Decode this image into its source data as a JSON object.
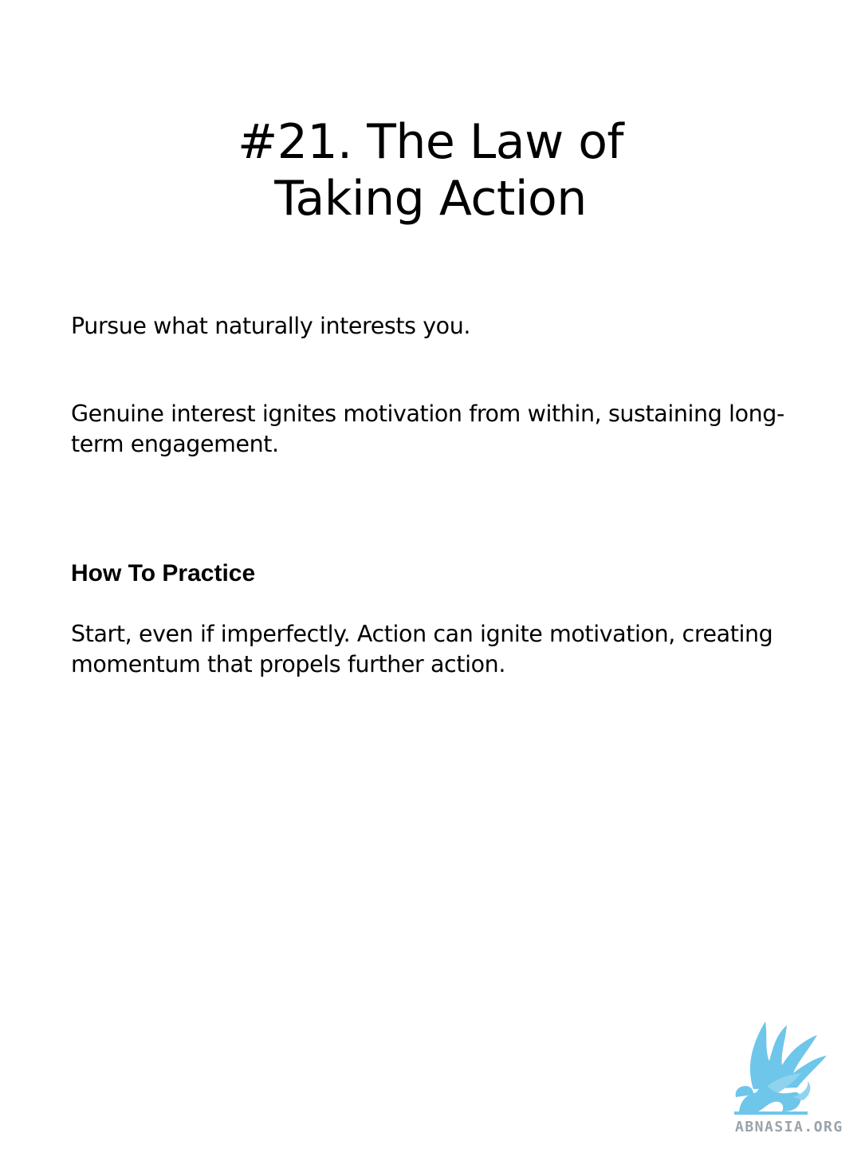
{
  "title": {
    "line1": "#21. The Law of",
    "line2": "Taking Action"
  },
  "paragraphs": {
    "intro": "Pursue what naturally interests you.",
    "explanation": "Genuine interest ignites motivation from within, sustaining long-term engagement."
  },
  "practice": {
    "heading": "How To Practice",
    "text": "Start, even if imperfectly. Action can ignite motivation, creating momentum that propels further action."
  },
  "logo": {
    "icon": "griffin-icon",
    "text": "ABNASIA.ORG",
    "color": "#6ec6ea"
  }
}
